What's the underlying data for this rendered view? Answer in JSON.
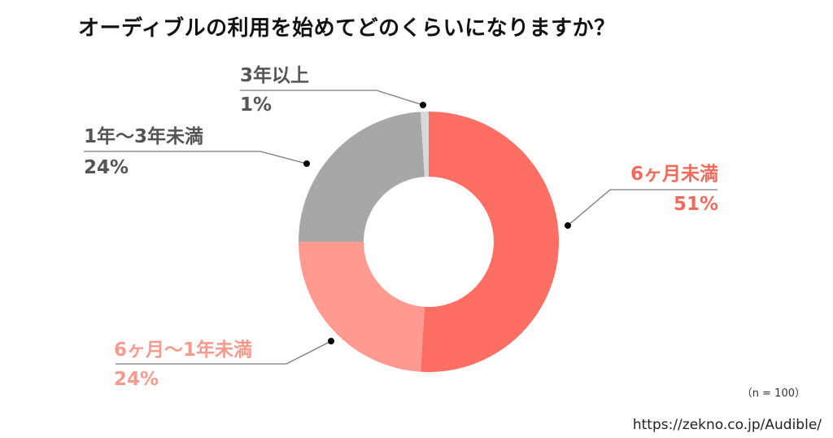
{
  "title": "オーディブルの利用を始めてどのくらいになりますか？",
  "sample_size": "（n = 100）",
  "source": "https://zekno.co.jp/Audible/",
  "colors": {
    "segment_lt6m": "#FF6E63",
    "segment_6m_1y": "#FF9A90",
    "segment_1y_3y": "#A8A6A8",
    "segment_3y_plus": "#DAD7DA",
    "label_lt6m": "#F26A5C",
    "label_6m_1y": "#F79A8E",
    "label_gray": "#555555"
  },
  "labels": {
    "lt6m": {
      "name": "6ヶ月未満",
      "pct": "51%"
    },
    "m6_1y": {
      "name": "6ヶ月〜1年未満",
      "pct": "24%"
    },
    "y1_3y": {
      "name": "1年〜3年未満",
      "pct": "24%"
    },
    "y3_plus": {
      "name": "3年以上",
      "pct": "1%"
    }
  },
  "chart_data": {
    "type": "pie",
    "subtype": "donut",
    "title": "オーディブルの利用を始めてどのくらいになりますか？",
    "categories": [
      "6ヶ月未満",
      "6ヶ月〜1年未満",
      "1年〜3年未満",
      "3年以上"
    ],
    "values": [
      51,
      24,
      24,
      1
    ],
    "unit": "%",
    "sample_size": 100,
    "start_angle_deg": 0,
    "direction": "clockwise",
    "legend": "callout labels"
  }
}
